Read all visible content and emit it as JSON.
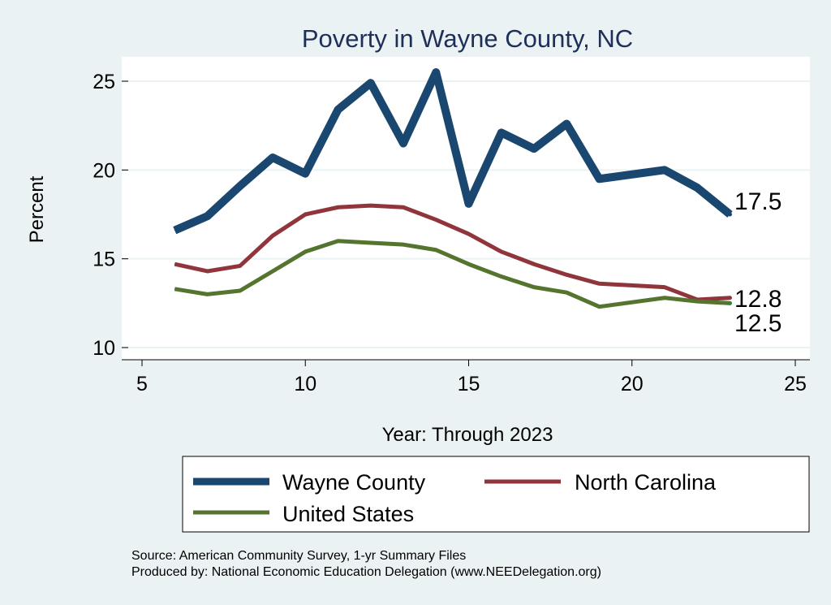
{
  "chart_data": {
    "type": "line",
    "title": "Poverty in Wayne County, NC",
    "xlabel": "Year: Through 2023",
    "ylabel": "Percent",
    "xlim": [
      5,
      25
    ],
    "ylim": [
      10,
      25
    ],
    "xticks": [
      5,
      10,
      15,
      20,
      25
    ],
    "yticks": [
      10,
      15,
      20,
      25
    ],
    "grid": "horizontal",
    "legend_position": "bottom",
    "x": [
      6,
      7,
      8,
      9,
      10,
      11,
      12,
      13,
      14,
      15,
      16,
      17,
      18,
      19,
      21,
      22,
      23
    ],
    "series": [
      {
        "name": "Wayne County",
        "color": "#1a476f",
        "values": [
          16.6,
          17.4,
          19.1,
          20.7,
          19.8,
          23.4,
          24.9,
          21.5,
          25.5,
          18.1,
          22.1,
          21.2,
          22.6,
          19.5,
          20.0,
          19.0,
          17.5
        ],
        "end_label": "17.5"
      },
      {
        "name": "North Carolina",
        "color": "#90353b",
        "values": [
          14.7,
          14.3,
          14.6,
          16.3,
          17.5,
          17.9,
          18.0,
          17.9,
          17.2,
          16.4,
          15.4,
          14.7,
          14.1,
          13.6,
          13.4,
          12.7,
          12.8
        ],
        "end_label": "12.8"
      },
      {
        "name": "United States",
        "color": "#55752f",
        "values": [
          13.3,
          13.0,
          13.2,
          14.3,
          15.4,
          16.0,
          15.9,
          15.8,
          15.5,
          14.7,
          14.0,
          13.4,
          13.1,
          12.3,
          12.8,
          12.6,
          12.5
        ],
        "end_label": "12.5"
      }
    ],
    "notes": [
      "Source: American Community Survey, 1-yr Summary Files",
      "Produced by: National Economic Education Delegation (www.NEEDelegation.org)"
    ]
  }
}
